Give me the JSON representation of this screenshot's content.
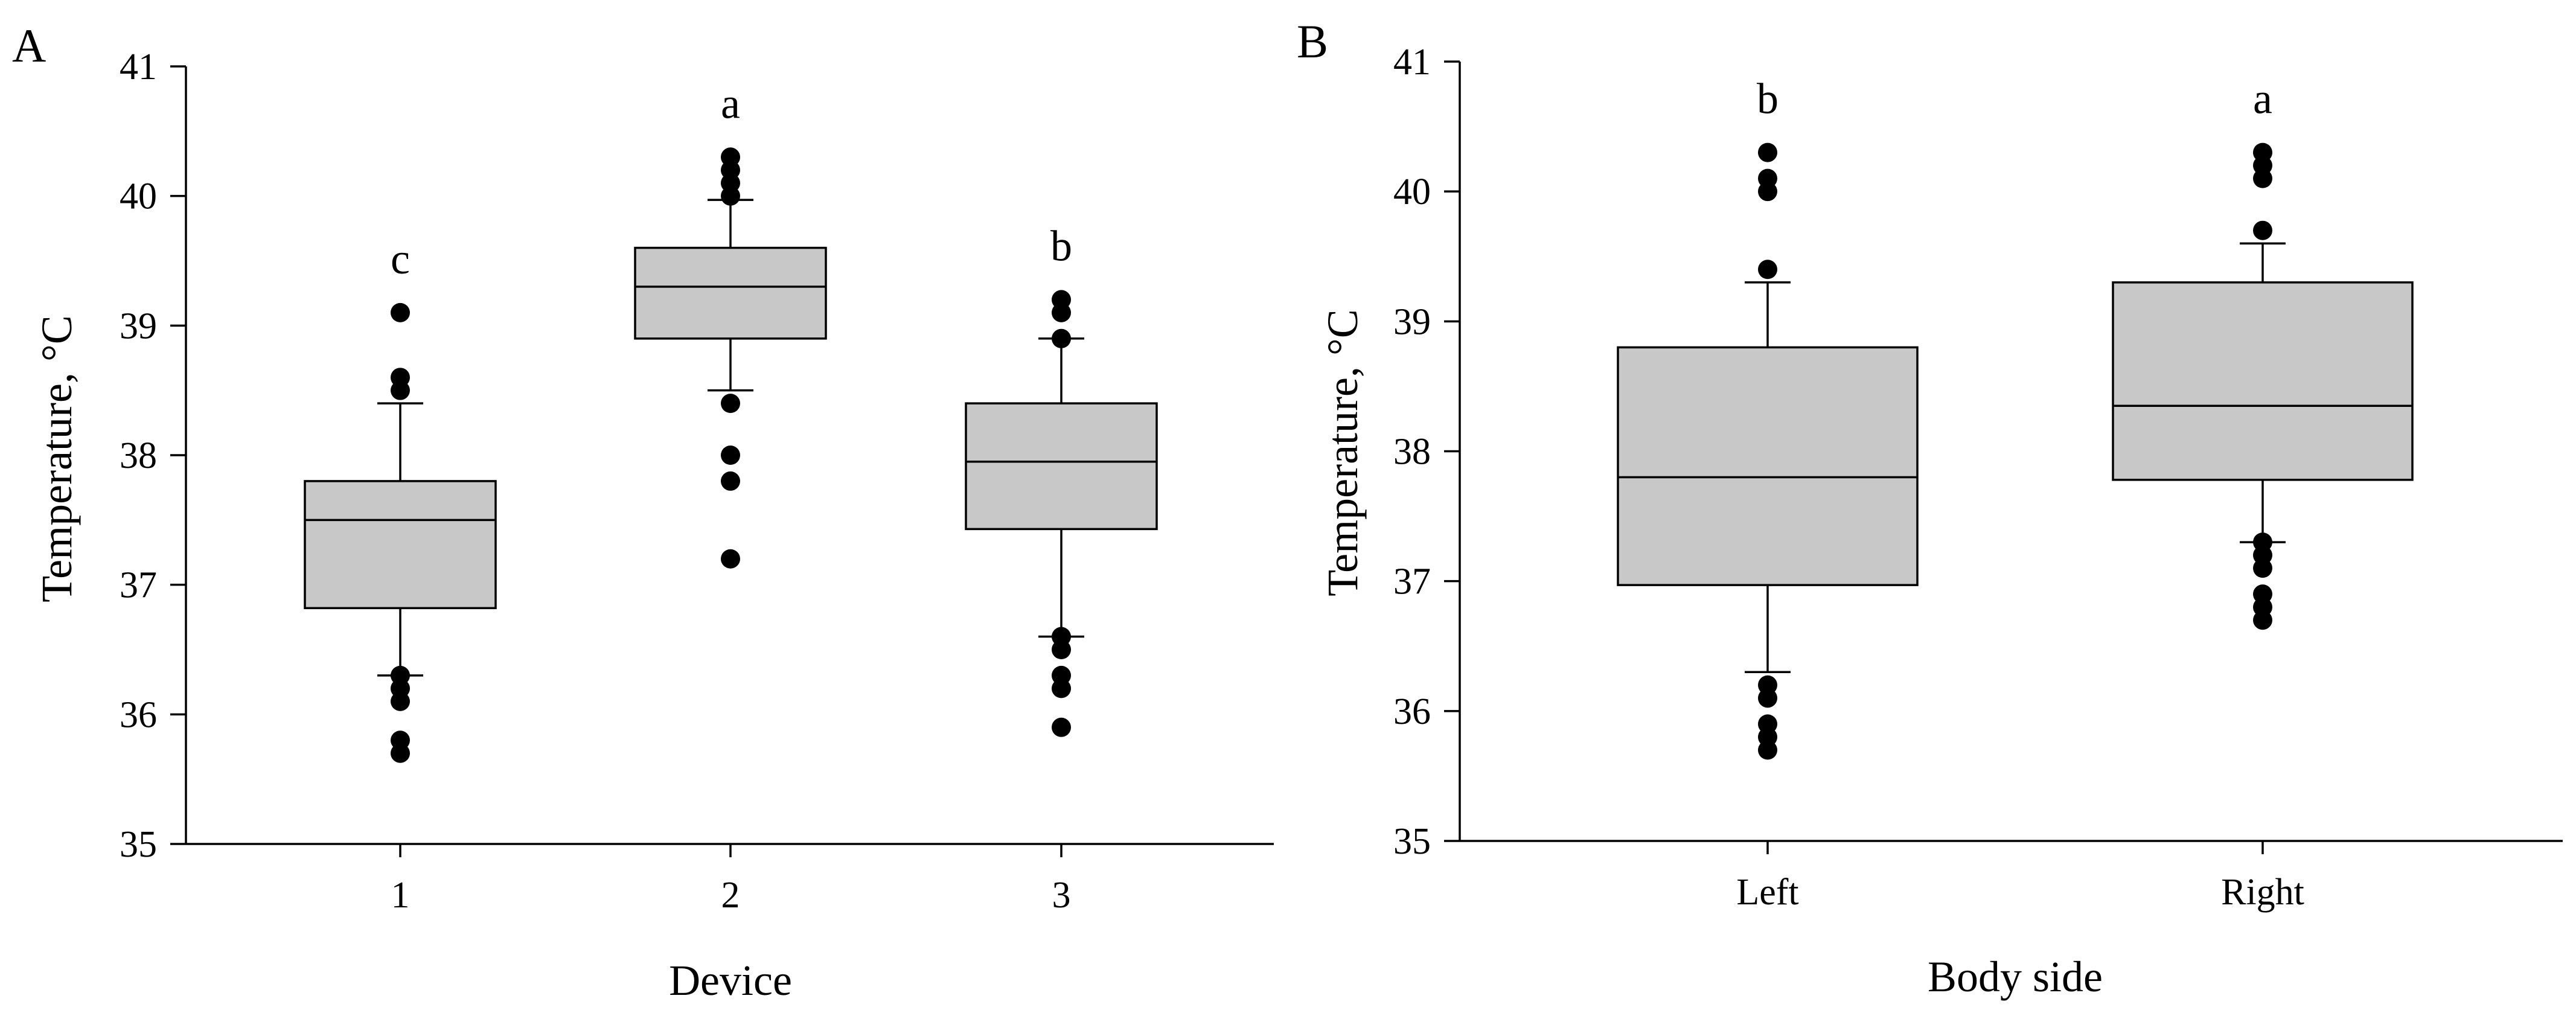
{
  "colors": {
    "box_fill": "#c8c8c8",
    "line": "#000000",
    "outlier": "#000000",
    "background": "#ffffff"
  },
  "chart_data": [
    {
      "type": "box",
      "panel": "A",
      "xlabel": "Device",
      "ylabel": "Temperature, °C",
      "ylim": [
        35,
        41
      ],
      "yticks": [
        "35",
        "36",
        "37",
        "38",
        "39",
        "40",
        "41"
      ],
      "categories": [
        "1",
        "2",
        "3"
      ],
      "boxes": [
        {
          "category": "1",
          "letter": "c",
          "whisker_low": 36.3,
          "q1": 36.82,
          "median": 37.5,
          "q3": 37.8,
          "whisker_high": 38.4,
          "outliers": [
            35.7,
            35.8,
            36.1,
            36.2,
            36.3,
            38.5,
            38.6,
            39.1
          ]
        },
        {
          "category": "2",
          "letter": "a",
          "whisker_low": 38.5,
          "q1": 38.9,
          "median": 39.3,
          "q3": 39.6,
          "whisker_high": 39.97,
          "outliers": [
            37.2,
            37.8,
            38.0,
            38.4,
            40.0,
            40.1,
            40.2,
            40.3
          ]
        },
        {
          "category": "3",
          "letter": "b",
          "whisker_low": 36.6,
          "q1": 37.43,
          "median": 37.95,
          "q3": 38.4,
          "whisker_high": 38.9,
          "outliers": [
            35.9,
            36.2,
            36.3,
            36.5,
            36.6,
            38.9,
            39.1,
            39.2
          ]
        }
      ]
    },
    {
      "type": "box",
      "panel": "B",
      "xlabel": "Body side",
      "ylabel": "Temperature, °C",
      "ylim": [
        35,
        41
      ],
      "yticks": [
        "35",
        "36",
        "37",
        "38",
        "39",
        "40",
        "41"
      ],
      "categories": [
        "Left",
        "Right"
      ],
      "boxes": [
        {
          "category": "Left",
          "letter": "b",
          "whisker_low": 36.3,
          "q1": 36.97,
          "median": 37.8,
          "q3": 38.8,
          "whisker_high": 39.3,
          "outliers": [
            35.7,
            35.8,
            35.9,
            36.1,
            36.2,
            39.4,
            40.0,
            40.1,
            40.3
          ]
        },
        {
          "category": "Right",
          "letter": "a",
          "whisker_low": 37.3,
          "q1": 37.78,
          "median": 38.35,
          "q3": 39.3,
          "whisker_high": 39.6,
          "outliers": [
            36.7,
            36.8,
            36.9,
            37.1,
            37.2,
            37.3,
            39.7,
            40.1,
            40.2,
            40.3
          ]
        }
      ]
    }
  ]
}
